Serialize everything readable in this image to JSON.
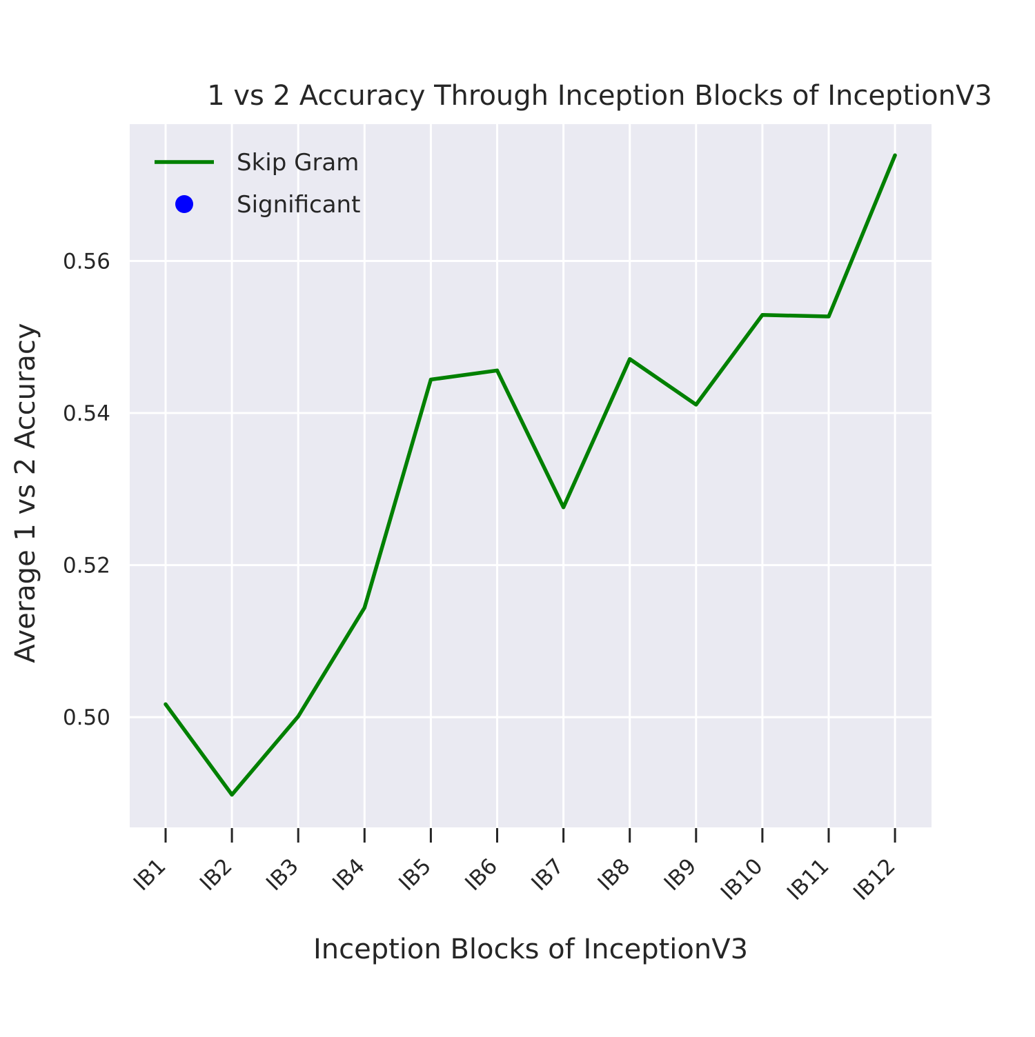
{
  "chart_data": {
    "type": "line",
    "title": "1 vs 2 Accuracy Through Inception Blocks of InceptionV3",
    "xlabel": "Inception Blocks of InceptionV3",
    "ylabel": "Average 1 vs 2 Accuracy",
    "categories": [
      "IB1",
      "IB2",
      "IB3",
      "IB4",
      "IB5",
      "IB6",
      "IB7",
      "IB8",
      "IB9",
      "IB10",
      "IB11",
      "IB12"
    ],
    "ylim": [
      0.4855,
      0.578
    ],
    "yticks": [
      0.5,
      0.52,
      0.54,
      0.56
    ],
    "ytick_labels": [
      "0.50",
      "0.52",
      "0.54",
      "0.56"
    ],
    "series": [
      {
        "name": "Skip Gram",
        "color": "#008000",
        "values": [
          0.5017,
          0.4898,
          0.5001,
          0.5144,
          0.5444,
          0.5456,
          0.5276,
          0.5471,
          0.5411,
          0.5529,
          0.5527,
          0.5739
        ]
      }
    ],
    "legend": {
      "position": "top-left",
      "entries": [
        {
          "label": "Skip Gram",
          "marker": "line",
          "color": "#008000"
        },
        {
          "label": "Significant",
          "marker": "dot",
          "color": "#0000ff"
        }
      ]
    },
    "grid": true,
    "background_color": "#eaeaf2",
    "grid_color": "#ffffff"
  }
}
